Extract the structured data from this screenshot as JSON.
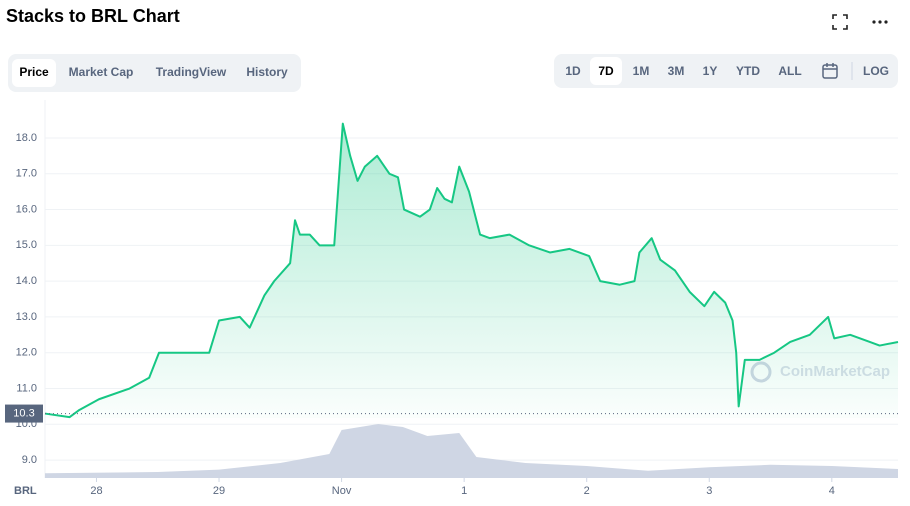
{
  "header": {
    "title": "Stacks to BRL Chart",
    "tabs": [
      "Price",
      "Market Cap",
      "TradingView",
      "History"
    ],
    "active_tab": 0,
    "ranges": [
      "1D",
      "7D",
      "1M",
      "3M",
      "1Y",
      "YTD",
      "ALL"
    ],
    "active_range": 1,
    "scale_button": "LOG"
  },
  "chart_data": {
    "type": "line",
    "currency": "BRL",
    "watermark": "CoinMarketCap",
    "xlim": [
      -0.42,
      6.54
    ],
    "xticks": [
      {
        "value": 0,
        "label": "28"
      },
      {
        "value": 1,
        "label": "29"
      },
      {
        "value": 2,
        "label": "Nov"
      },
      {
        "value": 3,
        "label": "1"
      },
      {
        "value": 4,
        "label": "2"
      },
      {
        "value": 5,
        "label": "3"
      },
      {
        "value": 6,
        "label": "4"
      }
    ],
    "ylim": [
      8.5,
      19.06
    ],
    "yticks": [
      {
        "value": 9,
        "label": "9.0"
      },
      {
        "value": 10,
        "label": "10.0"
      },
      {
        "value": 11,
        "label": "11.0"
      },
      {
        "value": 12,
        "label": "12.0"
      },
      {
        "value": 13,
        "label": "13.0"
      },
      {
        "value": 14,
        "label": "14.0"
      },
      {
        "value": 15,
        "label": "15.0"
      },
      {
        "value": 16,
        "label": "16.0"
      },
      {
        "value": 17,
        "label": "17.0"
      },
      {
        "value": 18,
        "label": "18.0"
      }
    ],
    "y2lim": [
      0,
      100
    ],
    "grid": true,
    "reference_line": {
      "value": 10.3
    },
    "series": [
      {
        "name": "Price",
        "color": "#16c784",
        "x": [
          -0.42,
          -0.22,
          -0.14,
          0.02,
          0.27,
          0.43,
          0.51,
          0.76,
          0.92,
          1.0,
          1.17,
          1.25,
          1.37,
          1.45,
          1.58,
          1.62,
          1.66,
          1.74,
          1.82,
          1.94,
          2.01,
          2.07,
          2.13,
          2.19,
          2.29,
          2.39,
          2.46,
          2.51,
          2.64,
          2.72,
          2.78,
          2.84,
          2.9,
          2.96,
          3.04,
          3.13,
          3.21,
          3.37,
          3.53,
          3.7,
          3.86,
          4.02,
          4.11,
          4.27,
          4.39,
          4.43,
          4.53,
          4.6,
          4.72,
          4.84,
          4.96,
          5.04,
          5.13,
          5.19,
          5.22,
          5.24,
          5.29,
          5.41,
          5.53,
          5.66,
          5.82,
          5.97,
          6.02,
          6.15,
          6.31,
          6.39,
          6.54
        ],
        "values": [
          10.3,
          10.2,
          10.4,
          10.7,
          11.0,
          11.3,
          12.0,
          12.0,
          12.0,
          12.9,
          13.0,
          12.7,
          13.6,
          14.0,
          14.5,
          15.7,
          15.3,
          15.3,
          15.0,
          15.0,
          18.4,
          17.5,
          16.8,
          17.2,
          17.5,
          17.0,
          16.9,
          16.0,
          15.8,
          16.0,
          16.6,
          16.3,
          16.2,
          17.2,
          16.5,
          15.3,
          15.2,
          15.3,
          15.0,
          14.8,
          14.9,
          14.7,
          14.0,
          13.9,
          14.0,
          14.8,
          15.2,
          14.6,
          14.3,
          13.7,
          13.3,
          13.7,
          13.4,
          12.9,
          12.0,
          10.5,
          11.8,
          11.8,
          12.0,
          12.3,
          12.5,
          13.0,
          12.4,
          12.5,
          12.3,
          12.2,
          12.3
        ]
      },
      {
        "name": "Volume",
        "color": "#cfd6e4",
        "axis": "y2",
        "x": [
          -0.42,
          0.5,
          1.0,
          1.5,
          1.9,
          2.0,
          2.3,
          2.5,
          2.7,
          2.96,
          3.1,
          3.5,
          4.0,
          4.5,
          5.0,
          5.5,
          6.0,
          6.54
        ],
        "values": [
          8,
          10,
          14,
          25,
          40,
          80,
          90,
          85,
          70,
          75,
          35,
          25,
          20,
          12,
          18,
          22,
          20,
          15
        ]
      }
    ]
  }
}
